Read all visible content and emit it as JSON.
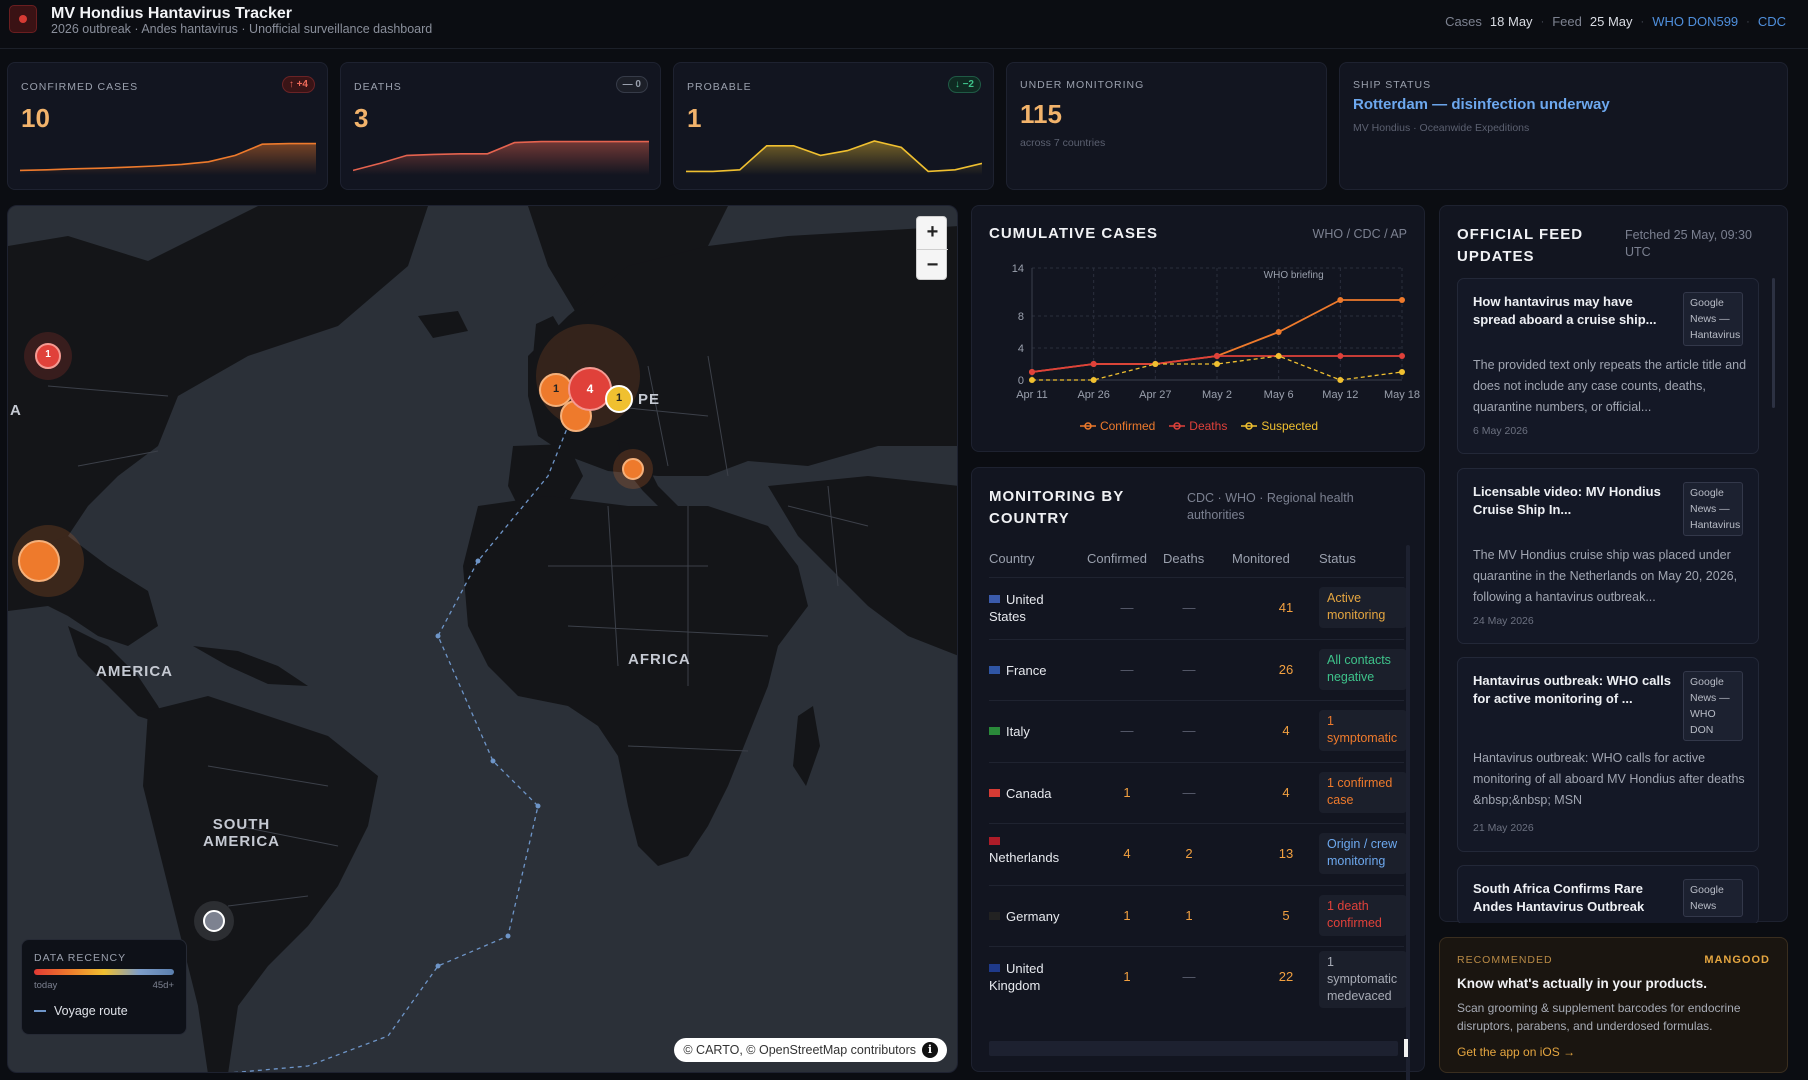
{
  "app": {
    "title": "MV Hondius Hantavirus Tracker",
    "subtitle": "2026 outbreak · Andes hantavirus · Unofficial surveillance dashboard"
  },
  "header": {
    "cases_label": "Cases",
    "cases_date": "18 May",
    "feed_label": "Feed",
    "feed_date": "25 May",
    "sep": "·",
    "link_who": "WHO DON599",
    "link_cdc": "CDC"
  },
  "kpis": {
    "confirmed": {
      "label": "CONFIRMED CASES",
      "value": "10",
      "badge": "↑ +4",
      "spark": [
        0.08,
        0.1,
        0.13,
        0.15,
        0.18,
        0.22,
        0.27,
        0.35,
        0.55,
        0.9,
        0.92,
        0.92
      ]
    },
    "deaths": {
      "label": "DEATHS",
      "value": "3",
      "badge": "— 0",
      "spark": [
        0.08,
        0.3,
        0.55,
        0.58,
        0.6,
        0.6,
        0.95,
        0.98,
        0.98,
        0.98,
        0.98,
        0.98
      ]
    },
    "probable": {
      "label": "PROBABLE",
      "value": "1",
      "badge": "↓ −2",
      "spark": [
        0.05,
        0.05,
        0.1,
        0.85,
        0.85,
        0.55,
        0.7,
        1.0,
        0.8,
        0.05,
        0.1,
        0.3
      ]
    },
    "monitoring": {
      "label": "UNDER MONITORING",
      "value": "115",
      "note": "across 7 countries"
    },
    "ship": {
      "label": "SHIP STATUS",
      "value": "Rotterdam — disinfection underway",
      "note": "MV Hondius · Oceanwide Expeditions"
    }
  },
  "map": {
    "zoom_in": "+",
    "zoom_out": "−",
    "labels": {
      "america": "AMERICA",
      "africa": "AFRICA",
      "south_america_1": "SOUTH",
      "south_america_2": "AMERICA",
      "europe_frag": "PE",
      "na_frag": "A"
    },
    "markers": {
      "canada": "1",
      "uk": "1",
      "netherlands": "4",
      "germany": "1"
    },
    "legend": {
      "title": "DATA RECENCY",
      "min": "today",
      "max": "45d+",
      "route": "Voyage route"
    },
    "attribution": "© CARTO, © OpenStreetMap contributors"
  },
  "chart_data": {
    "type": "line",
    "title": "CUMULATIVE CASES",
    "source": "WHO / CDC / AP",
    "annotation": "WHO briefing",
    "x_ticks": [
      "Apr 11",
      "Apr 26",
      "Apr 27",
      "May 2",
      "May 6",
      "May 12",
      "May 18"
    ],
    "y_ticks": [
      0,
      4,
      8,
      14
    ],
    "ylim": [
      0,
      14
    ],
    "x": [
      "Apr 11",
      "Apr 26",
      "Apr 27",
      "May 2",
      "May 6",
      "May 12",
      "May 18"
    ],
    "series": [
      {
        "name": "Confirmed",
        "color": "#ee7a2c",
        "values": [
          1,
          2,
          2,
          3,
          6,
          10,
          10
        ]
      },
      {
        "name": "Deaths",
        "color": "#e0413a",
        "values": [
          1,
          2,
          2,
          3,
          3,
          3,
          3
        ]
      },
      {
        "name": "Suspected",
        "color": "#f0c030",
        "values": [
          0,
          0,
          2,
          2,
          3,
          0,
          1
        ]
      }
    ]
  },
  "monitoring": {
    "title_1": "MONITORING BY",
    "title_2": "COUNTRY",
    "source_1": "CDC · WHO · Regional health",
    "source_2": "authorities",
    "columns": {
      "country": "Country",
      "confirmed": "Confirmed",
      "deaths": "Deaths",
      "monitored": "Monitored",
      "status": "Status"
    },
    "rows": [
      {
        "name_1": "United",
        "name_2": "States",
        "confirmed": "—",
        "deaths": "—",
        "monitored": "41",
        "status_1": "Active",
        "status_2": "monitoring",
        "status_color": "#e5a640"
      },
      {
        "name_1": "France",
        "name_2": "",
        "confirmed": "—",
        "deaths": "—",
        "monitored": "26",
        "status_1": "All contacts",
        "status_2": "negative",
        "status_color": "#3ec28a"
      },
      {
        "name_1": "Italy",
        "name_2": "",
        "confirmed": "—",
        "deaths": "—",
        "monitored": "4",
        "status_1": "1",
        "status_2": "symptomatic",
        "status_color": "#ee7a2c"
      },
      {
        "name_1": "Canada",
        "name_2": "",
        "confirmed": "1",
        "deaths": "—",
        "monitored": "4",
        "status_1": "1 confirmed",
        "status_2": "case",
        "status_color": "#ee7a2c"
      },
      {
        "name_1": "",
        "name_2": "Netherlands",
        "confirmed": "4",
        "deaths": "2",
        "monitored": "13",
        "status_1": "Origin / crew",
        "status_2": "monitoring",
        "status_color": "#6da8ee"
      },
      {
        "name_1": "Germany",
        "name_2": "",
        "confirmed": "1",
        "deaths": "1",
        "monitored": "5",
        "status_1": "1 death",
        "status_2": "confirmed",
        "status_color": "#e0413a"
      },
      {
        "name_1": "United",
        "name_2": "Kingdom",
        "confirmed": "1",
        "deaths": "—",
        "monitored": "22",
        "status_1": "1",
        "status_2": "symptomatic",
        "status_3": "medevaced",
        "status_color": "#a7abb5"
      }
    ]
  },
  "feed": {
    "title_1": "OFFICIAL FEED",
    "title_2": "UPDATES",
    "fetched_1": "Fetched 25 May, 09:30",
    "fetched_2": "UTC",
    "items": [
      {
        "title": "How hantavirus may have spread aboard a cruise ship...",
        "source": "Google News — Hantavirus",
        "body": "The provided text only repeats the article title and does not include any case counts, deaths, quarantine numbers, or official...",
        "date": "6 May 2026"
      },
      {
        "title": "Licensable video: MV Hondius Cruise Ship In...",
        "source": "Google News — Hantavirus",
        "body": "The MV Hondius cruise ship was placed under quarantine in the Netherlands on May 20, 2026, following a hantavirus outbreak...",
        "date": "24 May 2026"
      },
      {
        "title": "Hantavirus outbreak: WHO calls for active monitoring of ...",
        "source": "Google News — WHO DON",
        "body": "Hantavirus outbreak: WHO calls for active monitoring of all aboard MV Hondius after deaths &nbsp;&nbsp; MSN",
        "date": "21 May 2026"
      },
      {
        "title": "South Africa Confirms Rare Andes Hantavirus Outbreak",
        "source": "Google News",
        "body": "",
        "date": ""
      }
    ]
  },
  "ad": {
    "label": "RECOMMENDED",
    "brand": "MANGOOD",
    "headline": "Know what's actually in your products.",
    "body": "Scan grooming & supplement barcodes for endocrine disruptors, parabens, and underdosed formulas.",
    "cta": "Get the app on iOS →"
  }
}
